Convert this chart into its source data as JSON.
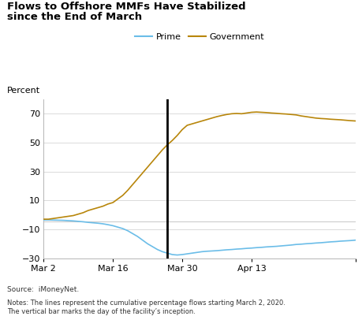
{
  "title_line1": "Flows to Offshore MMFs Have Stabilized",
  "title_line2": "since the End of March",
  "ylabel": "Percent",
  "source_text": "Source:  iMoneyNet.",
  "notes_text": "Notes: The lines represent the cumulative percentage flows starting March 2, 2020.\nThe vertical bar marks the day of the facility’s inception.",
  "prime_color": "#6BBDE8",
  "gov_color": "#B8860B",
  "vline_x": 25,
  "ylim": [
    -30,
    80
  ],
  "yticks": [
    -30,
    -10,
    10,
    30,
    50,
    70
  ],
  "hline_y": -4.5,
  "background_color": "#ffffff",
  "grid_color": "#cccccc",
  "prime_y": [
    -3.5,
    -3.5,
    -3.6,
    -3.7,
    -3.8,
    -4.0,
    -4.2,
    -4.5,
    -4.8,
    -5.2,
    -5.5,
    -5.8,
    -6.2,
    -6.8,
    -7.5,
    -8.5,
    -9.5,
    -11.0,
    -13.0,
    -15.0,
    -17.5,
    -20.0,
    -22.0,
    -24.0,
    -25.5,
    -26.5,
    -27.5,
    -27.8,
    -27.5,
    -27.0,
    -26.5,
    -26.0,
    -25.5,
    -25.2,
    -25.0,
    -24.8,
    -24.5,
    -24.2,
    -24.0,
    -23.7,
    -23.5,
    -23.2,
    -23.0,
    -22.7,
    -22.5,
    -22.2,
    -22.0,
    -21.8,
    -21.5,
    -21.2,
    -20.9,
    -20.5,
    -20.3,
    -20.0,
    -19.8,
    -19.5,
    -19.3,
    -19.0,
    -18.7,
    -18.5,
    -18.2,
    -18.0,
    -17.8,
    -17.5
  ],
  "gov_y": [
    -3.0,
    -3.0,
    -2.5,
    -2.0,
    -1.5,
    -1.0,
    -0.5,
    0.5,
    1.5,
    3.0,
    4.0,
    5.0,
    6.0,
    7.5,
    8.5,
    11.0,
    13.5,
    17.0,
    21.0,
    25.0,
    29.0,
    33.0,
    37.0,
    41.0,
    45.0,
    48.5,
    51.5,
    55.0,
    59.0,
    62.0,
    63.0,
    64.0,
    65.0,
    66.0,
    67.0,
    68.0,
    68.8,
    69.5,
    70.0,
    70.2,
    70.0,
    70.5,
    71.0,
    71.2,
    71.0,
    70.8,
    70.5,
    70.3,
    70.0,
    69.8,
    69.5,
    69.2,
    68.5,
    68.0,
    67.5,
    67.0,
    66.7,
    66.5,
    66.2,
    66.0,
    65.8,
    65.5,
    65.2,
    65.0
  ],
  "x_ticks_pos": [
    0,
    14,
    28,
    42,
    63
  ],
  "x_ticks_labels": [
    "Mar 2",
    "Mar 16",
    "Mar 30",
    "Apr 13",
    ""
  ]
}
